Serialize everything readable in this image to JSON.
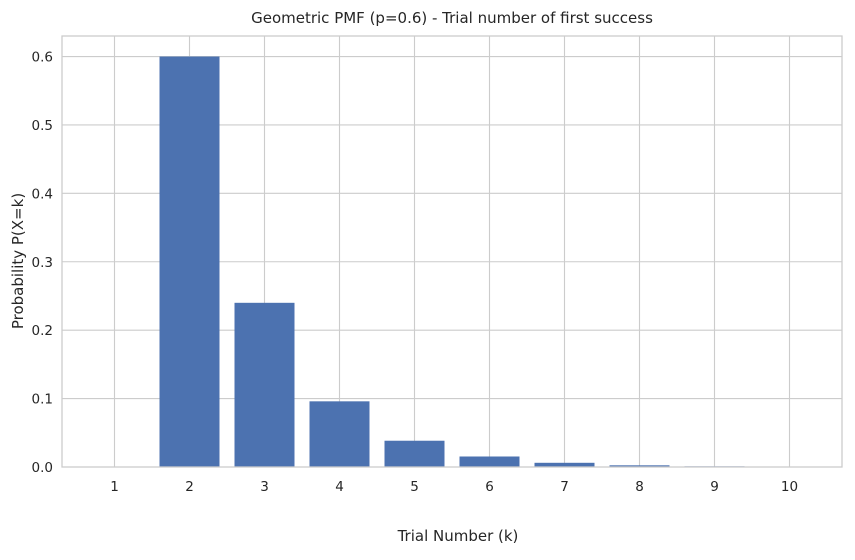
{
  "chart_data": {
    "type": "bar",
    "title": "Geometric PMF (p=0.6) - Trial number of first success",
    "xlabel": "Trial Number (k)",
    "ylabel": "Probability P(X=k)",
    "categories": [
      "1",
      "2",
      "3",
      "4",
      "5",
      "6",
      "7",
      "8",
      "9",
      "10"
    ],
    "x": [
      1,
      2,
      3,
      4,
      5,
      6,
      7,
      8,
      9,
      10
    ],
    "values": [
      0.0,
      0.6,
      0.24,
      0.096,
      0.0384,
      0.01536,
      0.006144,
      0.0024576,
      0.00098304,
      0.000393216
    ],
    "ylim": [
      0,
      0.63
    ],
    "xlim": [
      0.3,
      10.7
    ],
    "yticks": [
      0.0,
      0.1,
      0.2,
      0.3,
      0.4,
      0.5,
      0.6
    ],
    "ytick_labels": [
      "0.0",
      "0.1",
      "0.2",
      "0.3",
      "0.4",
      "0.5",
      "0.6"
    ],
    "grid": true,
    "bar_color": "#4c72b0",
    "grid_color": "#cccccc"
  }
}
